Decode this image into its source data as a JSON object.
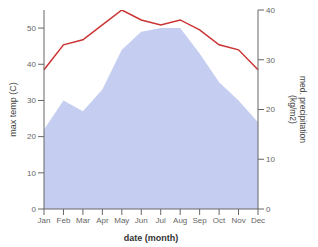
{
  "chart_data": {
    "type": "area",
    "categories": [
      "Jan",
      "Feb",
      "Mar",
      "Apr",
      "May",
      "Jun",
      "Jul",
      "Aug",
      "Sep",
      "Oct",
      "Nov",
      "Dec"
    ],
    "xlabel": "date (month)",
    "ylabel": "max temp (C)",
    "y2label": "med. precipitation\n(kg/m2)",
    "series": [
      {
        "type": "area",
        "color": "#c5cef0",
        "values": [
          22,
          30,
          27,
          33,
          44,
          49,
          50,
          50,
          43,
          35,
          30,
          24
        ]
      },
      {
        "type": "line",
        "color": "#cc3333",
        "axis": "y2",
        "values": [
          28,
          33,
          34,
          37,
          40,
          38,
          37,
          38,
          36,
          33,
          32,
          28
        ]
      }
    ],
    "ylim": [
      0,
      55
    ],
    "yticks": [
      0,
      10,
      20,
      30,
      40,
      50
    ],
    "y2lim": [
      0,
      40
    ],
    "y2ticks": [
      0,
      10,
      20,
      30,
      40
    ]
  }
}
